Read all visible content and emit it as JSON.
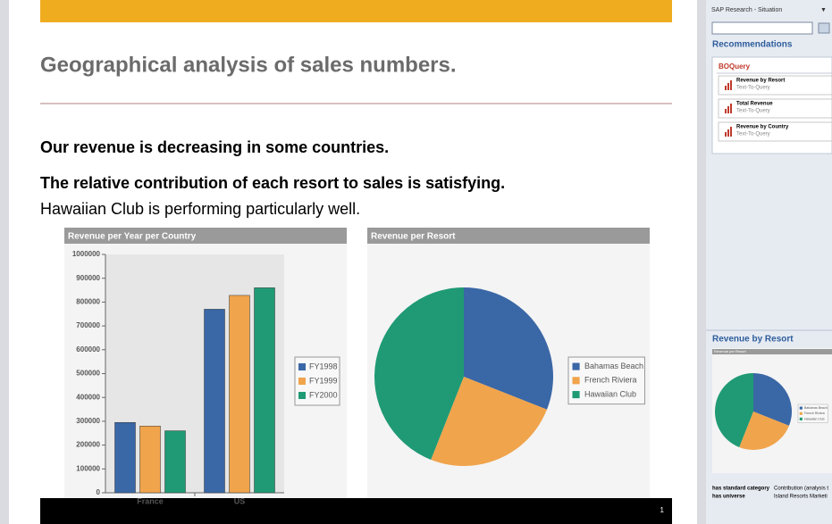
{
  "slide": {
    "title": "Geographical analysis of sales numbers.",
    "lines": [
      "Our revenue is decreasing in some countries.",
      "The relative contribution of each resort to sales is satisfying.",
      "Hawaiian  Club is performing particularly well."
    ],
    "page_number": "1"
  },
  "sidebar": {
    "window_title": "SAP Research - Situation",
    "recommendations_heading": "Recommendations",
    "group_title": "BOQuery",
    "items": [
      {
        "title": "Revenue by Resort",
        "subtitle": "Text-To-Query"
      },
      {
        "title": "Total Revenue",
        "subtitle": "Text-To-Query"
      },
      {
        "title": "Revenue by Country",
        "subtitle": "Text-To-Query"
      }
    ],
    "preview_heading": "Revenue by Resort",
    "properties": [
      {
        "key": "has standard category",
        "value": "Contribution (analysis t"
      },
      {
        "key": "has universe",
        "value": "Island Resorts Marketi"
      }
    ]
  },
  "chart_data": [
    {
      "type": "bar",
      "title": "Revenue per Year per Country",
      "categories": [
        "France",
        "US"
      ],
      "series": [
        {
          "name": "FY1998",
          "color": "#3a67a6",
          "values": [
            295000,
            770000
          ]
        },
        {
          "name": "FY1999",
          "color": "#f0a44c",
          "values": [
            280000,
            828000
          ]
        },
        {
          "name": "FY2000",
          "color": "#1f9a74",
          "values": [
            260000,
            860000
          ]
        }
      ],
      "ylim": [
        0,
        1000000
      ],
      "yticks": [
        0,
        100000,
        200000,
        300000,
        400000,
        500000,
        600000,
        700000,
        800000,
        900000,
        1000000
      ],
      "legend": "right"
    },
    {
      "type": "pie",
      "title": "Revenue per Resort",
      "categories": [
        "Bahamas Beach",
        "French Riviera",
        "Hawaiian Club"
      ],
      "values": [
        31,
        25,
        44
      ],
      "colors": [
        "#3a67a6",
        "#f0a44c",
        "#1f9a74"
      ],
      "legend": "right"
    },
    {
      "type": "pie",
      "title": "Revenue per Resort",
      "categories": [
        "Bahamas Beach",
        "French Riviera",
        "Hawaiian Club"
      ],
      "values": [
        31,
        25,
        44
      ],
      "colors": [
        "#3a67a6",
        "#f0a44c",
        "#1f9a74"
      ],
      "legend": "right"
    }
  ]
}
